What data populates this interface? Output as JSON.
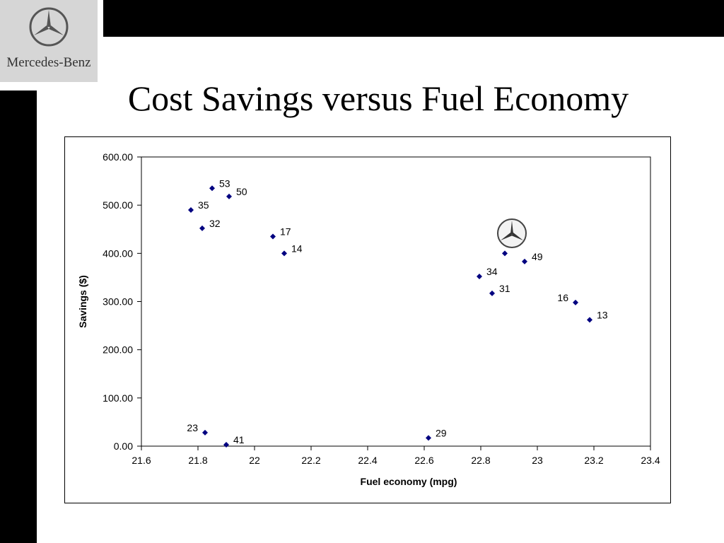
{
  "brand": {
    "logo_text": "Mercedes-Benz"
  },
  "slide": {
    "title": "Cost Savings versus Fuel Economy"
  },
  "colors": {
    "marker": "#000080",
    "frame": "#000000",
    "bars": "#000000",
    "logo_bg": "#d6d6d6"
  },
  "chart_data": {
    "type": "scatter",
    "xlabel": "Fuel economy (mpg)",
    "ylabel": "Savings ($)",
    "xlim": [
      21.6,
      23.4
    ],
    "ylim": [
      0,
      600
    ],
    "xticks": [
      "21.6",
      "21.8",
      "22",
      "22.2",
      "22.4",
      "22.6",
      "22.8",
      "23",
      "23.2",
      "23.4"
    ],
    "yticks": [
      "0.00",
      "100.00",
      "200.00",
      "300.00",
      "400.00",
      "500.00",
      "600.00"
    ],
    "grid": false,
    "legend": "none",
    "points": [
      {
        "x": 21.85,
        "y": 535,
        "label": "53"
      },
      {
        "x": 21.91,
        "y": 518,
        "label": "50"
      },
      {
        "x": 21.775,
        "y": 490,
        "label": "35"
      },
      {
        "x": 21.815,
        "y": 452,
        "label": "32"
      },
      {
        "x": 22.065,
        "y": 435,
        "label": "17"
      },
      {
        "x": 22.105,
        "y": 400,
        "label": "14"
      },
      {
        "x": 21.825,
        "y": 28,
        "label": "23"
      },
      {
        "x": 21.9,
        "y": 3,
        "label": "41"
      },
      {
        "x": 22.615,
        "y": 17,
        "label": "29"
      },
      {
        "x": 22.795,
        "y": 352,
        "label": "34"
      },
      {
        "x": 22.84,
        "y": 317,
        "label": "31"
      },
      {
        "x": 22.885,
        "y": 400,
        "label": ""
      },
      {
        "x": 22.955,
        "y": 383,
        "label": "49"
      },
      {
        "x": 23.135,
        "y": 298,
        "label": "16"
      },
      {
        "x": 23.185,
        "y": 262,
        "label": "13"
      }
    ]
  }
}
